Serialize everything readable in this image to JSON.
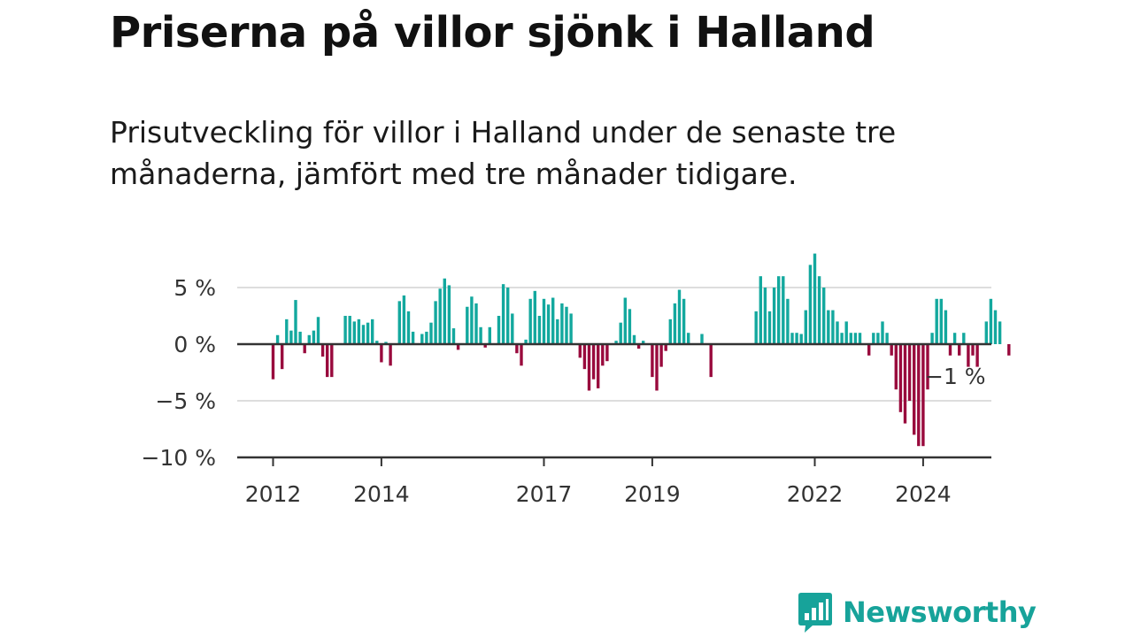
{
  "title": "Priserna på villor sjönk i Halland",
  "subtitle": "Prisutveckling för villor i Halland under de senaste tre månaderna, jämfört med tre månader tidigare.",
  "brand": {
    "name": "Newsworthy",
    "color": "#17a39a",
    "icon": "bar-chart-speech-bubble-icon"
  },
  "colors": {
    "positive": "#13a89e",
    "negative": "#990a3d",
    "grid": "#dddddd",
    "axis": "#333333"
  },
  "chart_data": {
    "type": "bar",
    "x_start": "2012-01",
    "frequency": "monthly",
    "ylim": [
      -10,
      8
    ],
    "yticks": [
      {
        "value": 5,
        "label": "5 %"
      },
      {
        "value": 0,
        "label": "0 %"
      },
      {
        "value": -5,
        "label": "−5 %"
      },
      {
        "value": -10,
        "label": "−10 %"
      }
    ],
    "xticks": [
      {
        "year": 2012,
        "label": "2012"
      },
      {
        "year": 2014,
        "label": "2014"
      },
      {
        "year": 2017,
        "label": "2017"
      },
      {
        "year": 2019,
        "label": "2019"
      },
      {
        "year": 2022,
        "label": "2022"
      },
      {
        "year": 2024,
        "label": "2024"
      }
    ],
    "values": [
      -3.1,
      0.8,
      -2.2,
      2.2,
      1.2,
      3.9,
      1.1,
      -0.8,
      0.8,
      1.2,
      2.4,
      -1.1,
      -2.9,
      -2.9,
      0,
      0,
      2.5,
      2.5,
      2.0,
      2.2,
      1.7,
      1.9,
      2.2,
      0.3,
      -1.6,
      0.2,
      -1.9,
      0,
      3.8,
      4.3,
      2.9,
      1.1,
      0,
      0.9,
      1.1,
      1.9,
      3.8,
      4.9,
      5.8,
      5.2,
      1.4,
      -0.5,
      0,
      3.3,
      4.2,
      3.6,
      1.5,
      -0.3,
      1.5,
      0,
      2.5,
      5.3,
      5.0,
      2.7,
      -0.8,
      -1.9,
      0.4,
      4.0,
      4.7,
      2.5,
      4.0,
      3.5,
      4.1,
      2.2,
      3.6,
      3.3,
      2.7,
      0,
      -1.2,
      -2.2,
      -4.1,
      -3.1,
      -3.9,
      -1.9,
      -1.5,
      0,
      0.3,
      1.9,
      4.1,
      3.1,
      0.8,
      -0.4,
      0.3,
      0,
      -2.9,
      -4.1,
      -2.0,
      -0.6,
      2.2,
      3.6,
      4.8,
      4.0,
      1.0,
      0,
      0,
      0.9,
      0,
      -2.9,
      0,
      0,
      0,
      0,
      0,
      0,
      0,
      0,
      0,
      2.9,
      6.0,
      5.0,
      2.9,
      5.0,
      6.0,
      6.0,
      4.0,
      1.0,
      1.0,
      0.9,
      3.0,
      7.0,
      8.0,
      6.0,
      5.0,
      3.0,
      3.0,
      2.0,
      1.0,
      2.0,
      1.0,
      1.0,
      1.0,
      0,
      -1.0,
      1.0,
      1.0,
      2.0,
      1.0,
      -1.0,
      -4.0,
      -6.0,
      -7.0,
      -5.0,
      -8.0,
      -9.0,
      -9.0,
      -4.0,
      1.0,
      4.0,
      4.0,
      3.0,
      -1.0,
      1.0,
      -1.0,
      1.0,
      -2.0,
      -1.0,
      -2.0,
      0,
      2.0,
      4.0,
      3.0,
      2.0,
      0,
      -1.0
    ],
    "last_value_label": "−1 %"
  }
}
